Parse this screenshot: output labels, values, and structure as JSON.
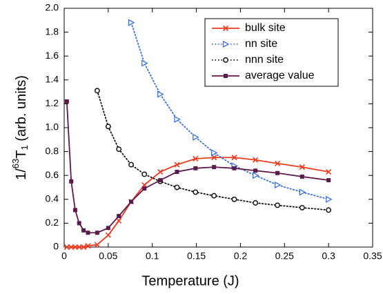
{
  "chart_data": {
    "type": "line",
    "xlabel": "Temperature (J)",
    "ylabel": [
      "1/",
      "63",
      "T",
      "1",
      " (arb. units)"
    ],
    "x": [
      0.003,
      0.008,
      0.0125,
      0.017,
      0.022,
      0.027,
      0.0375,
      0.05,
      0.062,
      0.076,
      0.091,
      0.109,
      0.128,
      0.149,
      0.17,
      0.193,
      0.217,
      0.242,
      0.27,
      0.3
    ],
    "series": [
      {
        "name": "bulk site",
        "color": "#ee3a1e",
        "marker": "cross",
        "dash": "solid",
        "values": [
          0,
          0,
          0,
          0,
          0,
          0.01,
          0.02,
          0.1,
          0.22,
          0.38,
          0.52,
          0.63,
          0.69,
          0.74,
          0.75,
          0.75,
          0.73,
          0.7,
          0.67,
          0.63
        ]
      },
      {
        "name": "nn site",
        "color": "#3a6fe0",
        "marker": "triangle",
        "dash": "dotted",
        "values": [
          null,
          null,
          null,
          null,
          null,
          null,
          null,
          null,
          null,
          1.88,
          1.54,
          1.28,
          1.07,
          0.92,
          0.79,
          0.68,
          0.6,
          0.52,
          0.46,
          0.4
        ]
      },
      {
        "name": "nnn site",
        "color": "#111111",
        "marker": "circle",
        "dash": "dotted",
        "values": [
          null,
          null,
          null,
          null,
          null,
          null,
          1.31,
          1.01,
          0.82,
          0.69,
          0.61,
          0.55,
          0.5,
          0.46,
          0.43,
          0.4,
          0.37,
          0.35,
          0.33,
          0.31
        ]
      },
      {
        "name": "average value",
        "color": "#5a1a4a",
        "marker": "square",
        "dash": "solid",
        "values": [
          1.22,
          0.55,
          0.31,
          0.2,
          0.14,
          0.12,
          0.12,
          0.16,
          0.26,
          0.38,
          0.49,
          0.56,
          0.63,
          0.66,
          0.67,
          0.66,
          0.64,
          0.62,
          0.59,
          0.56
        ]
      }
    ],
    "xlim": [
      0,
      0.35
    ],
    "xticks": [
      0,
      0.05,
      0.1,
      0.15,
      0.2,
      0.25,
      0.3,
      0.35
    ],
    "ylim": [
      0,
      2
    ],
    "yticks": [
      0,
      0.2,
      0.4,
      0.6,
      0.8,
      {
        "value": 1,
        "label": "1.0"
      },
      1.2,
      1.4,
      1.6,
      1.8,
      {
        "value": 2,
        "label": "2.0"
      }
    ],
    "legend": "upper right"
  }
}
